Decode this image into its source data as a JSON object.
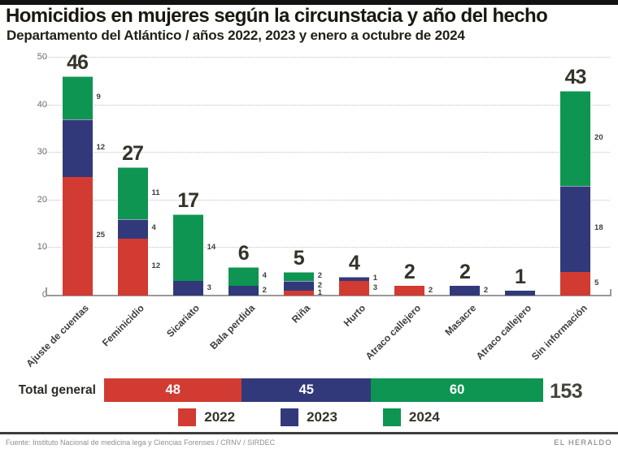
{
  "header": {
    "title": "Homicidios en mujeres según la circunstacia y año del hecho",
    "subtitle": "Departamento del Atlántico / años 2022, 2023 y enero a octubre de 2024"
  },
  "chart_data": {
    "type": "bar",
    "stacked": true,
    "title": "Homicidios en mujeres según la circunstacia y año del hecho",
    "categories": [
      "Ajuste de cuentas",
      "Feminicidio",
      "Sicariato",
      "Bala perdida",
      "Riña",
      "Hurto",
      "Atraco callejero",
      "Masacre",
      "Atraco callejero",
      "Sin información"
    ],
    "totals": [
      46,
      27,
      17,
      6,
      5,
      4,
      2,
      2,
      1,
      43
    ],
    "series": [
      {
        "name": "2022",
        "color": "#d23b31",
        "values": [
          25,
          12,
          0,
          0,
          1,
          3,
          2,
          0,
          0,
          5
        ],
        "labels": [
          "25",
          "12",
          "",
          "",
          "1",
          "3",
          "2",
          "",
          "",
          "5"
        ]
      },
      {
        "name": "2023",
        "color": "#32397a",
        "values": [
          12,
          4,
          3,
          2,
          2,
          1,
          0,
          2,
          1,
          18
        ],
        "labels": [
          "12",
          "4",
          "3",
          "2",
          "2",
          "1",
          "",
          "2",
          "",
          "18"
        ]
      },
      {
        "name": "2024",
        "color": "#0e9552",
        "values": [
          9,
          11,
          14,
          4,
          2,
          0,
          0,
          0,
          0,
          20
        ],
        "labels": [
          "9",
          "11",
          "14",
          "4",
          "2",
          "",
          "",
          "",
          "",
          "20"
        ]
      }
    ],
    "ylim": [
      0,
      50
    ],
    "yticks": [
      0,
      10,
      20,
      30,
      40,
      50
    ],
    "grid": "horizontal-dotted",
    "legend_position": "bottom"
  },
  "total_bar": {
    "label": "Total general",
    "segments": [
      {
        "name": "2022",
        "value": 48,
        "color": "#d23b31"
      },
      {
        "name": "2023",
        "value": 45,
        "color": "#32397a"
      },
      {
        "name": "2024",
        "value": 60,
        "color": "#0e9552"
      }
    ],
    "total": 153
  },
  "legend": {
    "items": [
      {
        "label": "2022",
        "color": "#d23b31"
      },
      {
        "label": "2023",
        "color": "#32397a"
      },
      {
        "label": "2024",
        "color": "#0e9552"
      }
    ]
  },
  "footer": {
    "source": "Fuente: Instituto Nacional de medicina lega y Ciencias Forenses / CRNV / SIRDEC",
    "credit": "EL HERALDO"
  }
}
